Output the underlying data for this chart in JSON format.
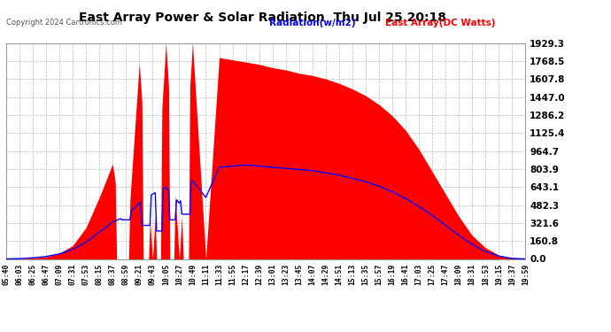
{
  "title": "East Array Power & Solar Radiation  Thu Jul 25 20:18",
  "copyright": "Copyright 2024 Cartronics.com",
  "legend_radiation": "Radiation(w/m2)",
  "legend_east": "East Array(DC Watts)",
  "ylabel_values": [
    0.0,
    160.8,
    321.6,
    482.3,
    643.1,
    803.9,
    964.7,
    1125.4,
    1286.2,
    1447.0,
    1607.8,
    1768.5,
    1929.3
  ],
  "ymax": 1929.3,
  "ymin": 0.0,
  "background_color": "#ffffff",
  "grid_color": "#bbbbbb",
  "radiation_color": "#0000ff",
  "east_array_color": "#ff0000",
  "title_color": "#000000",
  "copyright_color": "#555555",
  "legend_radiation_color": "#0000ff",
  "legend_east_color": "#ff0000",
  "x_tick_labels": [
    "05:40",
    "06:03",
    "06:25",
    "06:47",
    "07:09",
    "07:31",
    "07:53",
    "08:15",
    "08:37",
    "08:59",
    "09:21",
    "09:43",
    "10:05",
    "10:27",
    "10:49",
    "11:11",
    "11:33",
    "11:55",
    "12:17",
    "12:39",
    "13:01",
    "13:23",
    "13:45",
    "14:07",
    "14:29",
    "14:51",
    "15:13",
    "15:35",
    "15:57",
    "16:19",
    "16:41",
    "17:03",
    "17:25",
    "17:47",
    "18:09",
    "18:31",
    "18:53",
    "19:15",
    "19:37",
    "19:59"
  ],
  "n_points_per_interval": 10,
  "east_array_anchors": {
    "indices": [
      0,
      1,
      2,
      3,
      4,
      5,
      6,
      7,
      8,
      9,
      10,
      11,
      12,
      13,
      14,
      15,
      16,
      17,
      18,
      19,
      20,
      21,
      22,
      23,
      24,
      25,
      26,
      27,
      28,
      29,
      30,
      31,
      32,
      33,
      34,
      35,
      36,
      37,
      38,
      39
    ],
    "values": [
      0,
      2,
      8,
      20,
      50,
      120,
      280,
      550,
      850,
      0,
      1750,
      0,
      1929,
      0,
      1929,
      0,
      1800,
      1780,
      1760,
      1740,
      1710,
      1690,
      1660,
      1640,
      1610,
      1570,
      1520,
      1460,
      1380,
      1280,
      1150,
      980,
      780,
      580,
      380,
      210,
      100,
      35,
      8,
      0
    ]
  },
  "radiation_anchors": {
    "indices": [
      0,
      1,
      2,
      3,
      4,
      5,
      6,
      7,
      8,
      9,
      10,
      11,
      12,
      13,
      14,
      15,
      16,
      17,
      18,
      19,
      20,
      21,
      22,
      23,
      24,
      25,
      26,
      27,
      28,
      29,
      30,
      31,
      32,
      33,
      34,
      35,
      36,
      37,
      38,
      39
    ],
    "values": [
      0,
      3,
      10,
      22,
      45,
      85,
      150,
      240,
      330,
      380,
      500,
      580,
      640,
      500,
      700,
      550,
      820,
      830,
      840,
      830,
      820,
      810,
      800,
      790,
      770,
      750,
      720,
      690,
      650,
      600,
      540,
      470,
      390,
      300,
      210,
      130,
      65,
      25,
      5,
      0
    ]
  }
}
